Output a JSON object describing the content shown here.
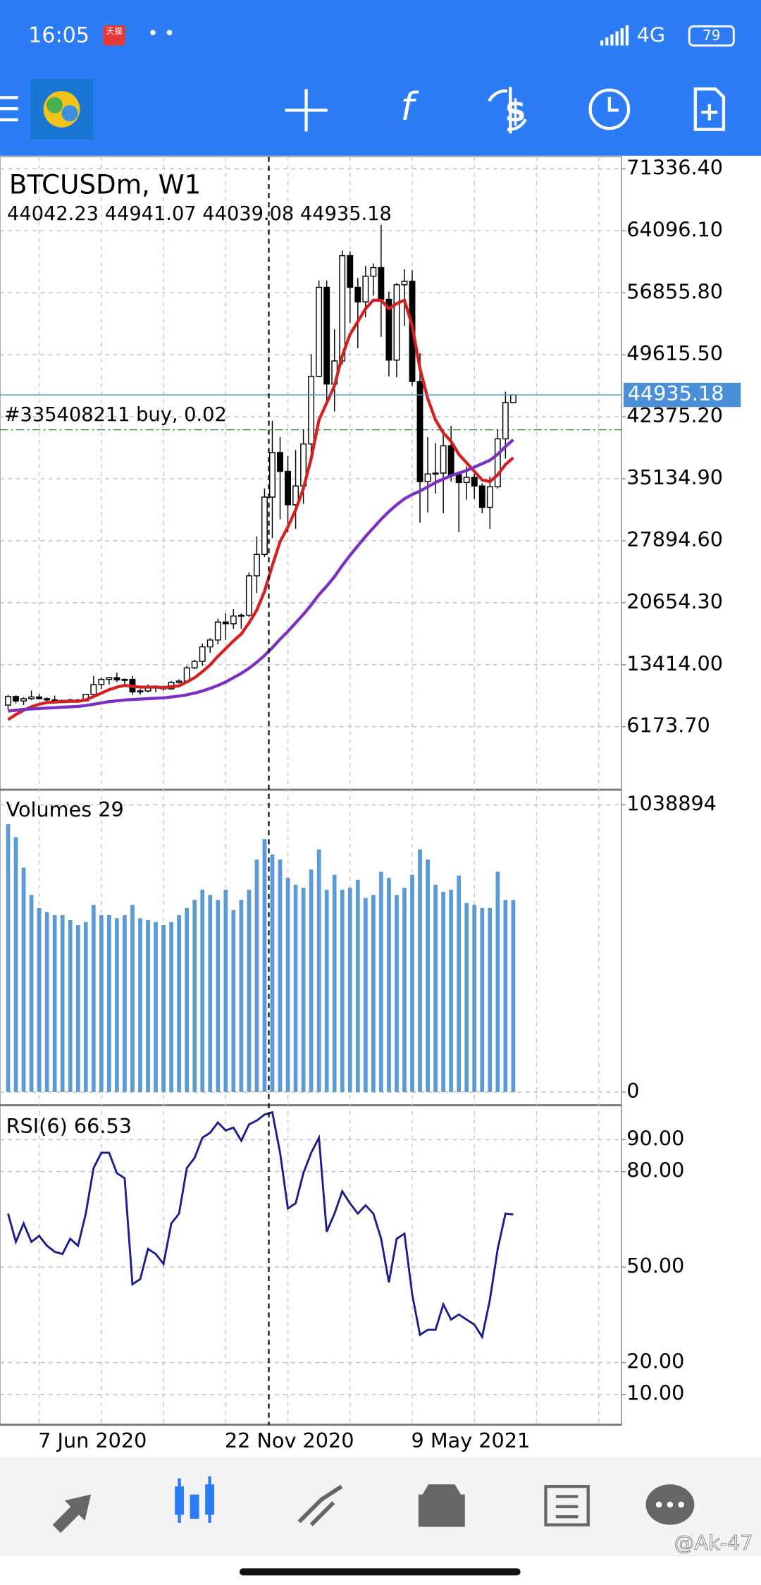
{
  "status_bar": {
    "time": "16:05",
    "badge": "天猫",
    "network": "4G",
    "battery": "79"
  },
  "chart_data": [
    {
      "type": "candlestick",
      "title": "BTCUSDm, W1",
      "categories": [
        null,
        null,
        null,
        null,
        "7 Jun 2020",
        null,
        null,
        null,
        null,
        null,
        null,
        null,
        null,
        null,
        null,
        null,
        null,
        null,
        null,
        null,
        null,
        null,
        null,
        null,
        null,
        null,
        null,
        null,
        "22 Nov 2020",
        null,
        null,
        null,
        null,
        null,
        null,
        null,
        null,
        null,
        null,
        null,
        null,
        null,
        null,
        null,
        null,
        null,
        null,
        null,
        null,
        null,
        null,
        null,
        "9 May 2021",
        null,
        null,
        null,
        null,
        null,
        null,
        null,
        null,
        null,
        null,
        null,
        null,
        null
      ],
      "open": [
        8700,
        9700,
        9180,
        9450,
        9650,
        9450,
        9300,
        9000,
        9250,
        9300,
        9200,
        9950,
        11100,
        11700,
        11900,
        11650,
        11700,
        10250,
        10350,
        10900,
        10750,
        10600,
        11350,
        11500,
        13050,
        13800,
        15500,
        16300,
        18400,
        18200,
        19100,
        19200,
        23800,
        26300,
        33000,
        38200,
        36000,
        32100,
        34300,
        39200,
        47100,
        57500,
        46200,
        48900,
        61200,
        57500,
        55800,
        58800,
        59800,
        56100,
        49000,
        57800,
        58200,
        46500,
        34800,
        35700,
        35800,
        39000,
        35600,
        34700,
        35300,
        34300,
        31800,
        34200,
        39800,
        44042.23
      ],
      "high": [
        9900,
        9850,
        9600,
        10400,
        9980,
        9600,
        9800,
        9300,
        9450,
        9400,
        10000,
        12100,
        11900,
        12000,
        12500,
        11800,
        12100,
        10600,
        11100,
        11000,
        10950,
        11500,
        11700,
        13300,
        14000,
        15900,
        16500,
        18800,
        19400,
        19900,
        19400,
        24200,
        28400,
        34000,
        41900,
        40000,
        37800,
        38500,
        40900,
        49700,
        58300,
        58300,
        52600,
        61800,
        61700,
        58600,
        60000,
        60300,
        64800,
        57000,
        58000,
        59600,
        59500,
        49800,
        40000,
        39300,
        40900,
        41300,
        36000,
        36600,
        35900,
        34600,
        35400,
        40900,
        45300,
        44941.07
      ],
      "low": [
        8100,
        8900,
        8700,
        9300,
        9400,
        9200,
        8900,
        8950,
        9100,
        9050,
        9100,
        9900,
        10600,
        11100,
        11400,
        11100,
        9900,
        9900,
        10200,
        10200,
        10400,
        10500,
        11200,
        11400,
        12900,
        13300,
        14800,
        15800,
        16300,
        17600,
        17600,
        19000,
        21800,
        26000,
        28200,
        30400,
        28900,
        29300,
        32200,
        37400,
        47000,
        43900,
        43000,
        48500,
        53300,
        50400,
        54000,
        56500,
        51700,
        47100,
        47000,
        53000,
        46000,
        30000,
        31200,
        33400,
        31100,
        34800,
        28900,
        32700,
        32800,
        31100,
        29300,
        34000,
        37500,
        44039.08
      ],
      "close": [
        9700,
        9180,
        9450,
        9650,
        9450,
        9300,
        9000,
        9250,
        9300,
        9200,
        9950,
        11100,
        11700,
        11900,
        11650,
        11700,
        10250,
        10350,
        10900,
        10750,
        10600,
        11350,
        11500,
        13050,
        13800,
        15500,
        16300,
        18400,
        18200,
        19100,
        19200,
        23800,
        26300,
        33000,
        38200,
        36000,
        32100,
        34300,
        39200,
        47100,
        57500,
        46200,
        48900,
        61200,
        57500,
        55800,
        58800,
        59800,
        56100,
        49000,
        57800,
        58200,
        46500,
        34800,
        35700,
        35800,
        39000,
        35600,
        34700,
        35300,
        34300,
        31800,
        34200,
        39800,
        44040,
        44935.18
      ],
      "up_color": "#ffffff",
      "down_color": "#000000",
      "moving_averages": [
        {
          "color": "#d42020",
          "values": [
            7000,
            7600,
            8100,
            8500,
            8800,
            9000,
            9050,
            9100,
            9150,
            9150,
            9300,
            9700,
            10100,
            10500,
            10800,
            11000,
            10900,
            10800,
            10800,
            10800,
            10750,
            10850,
            10950,
            11400,
            11900,
            12600,
            13400,
            14400,
            15300,
            16200,
            17000,
            18300,
            19800,
            22000,
            25000,
            27800,
            29500,
            31500,
            34000,
            37500,
            42000,
            44000,
            46000,
            49500,
            52000,
            53500,
            55000,
            56000,
            56000,
            55000,
            55600,
            56000,
            53000,
            48000,
            44500,
            42000,
            40500,
            39500,
            38000,
            37000,
            36000,
            35000,
            34800,
            35600,
            36800,
            37600
          ]
        },
        {
          "color": "#7b30c4",
          "values": [
            8000,
            8100,
            8200,
            8250,
            8300,
            8350,
            8400,
            8450,
            8500,
            8550,
            8650,
            8800,
            8950,
            9100,
            9200,
            9300,
            9350,
            9400,
            9450,
            9500,
            9550,
            9650,
            9750,
            9900,
            10100,
            10350,
            10650,
            11000,
            11400,
            11900,
            12400,
            13000,
            13700,
            14500,
            15400,
            16400,
            17300,
            18300,
            19300,
            20400,
            21600,
            22600,
            23700,
            25000,
            26200,
            27300,
            28400,
            29400,
            30400,
            31300,
            32100,
            32800,
            33300,
            33700,
            34200,
            34700,
            35100,
            35500,
            35800,
            36100,
            36500,
            36900,
            37300,
            38000,
            38900,
            39700
          ]
        }
      ],
      "order": {
        "label": "#335408211 buy, 0.02",
        "price": 40860,
        "color": "#2e7d32"
      },
      "price_line_color": "#4a90d9",
      "ylim": [
        -1067,
        72754
      ],
      "yticks": [
        {
          "value": 71336.4,
          "label": "71336.40"
        },
        {
          "value": 64096.1,
          "label": "64096.10"
        },
        {
          "value": 56855.8,
          "label": "56855.80"
        },
        {
          "value": 49615.5,
          "label": "49615.50"
        },
        {
          "value": 42375.2,
          "label": "42375.20"
        },
        {
          "value": 35134.9,
          "label": "35134.90"
        },
        {
          "value": 27894.6,
          "label": "27894.60"
        },
        {
          "value": 20654.3,
          "label": "20654.30"
        },
        {
          "value": 13414,
          "label": "13414.00"
        },
        {
          "value": 6173.7,
          "label": "6173.70"
        }
      ],
      "grid": true
    },
    {
      "type": "bar",
      "title": "Volumes 29",
      "color": "#5b9bd5",
      "values": [
        969000,
        922000,
        812000,
        713000,
        666000,
        651000,
        640000,
        640000,
        622000,
        604000,
        615000,
        677000,
        640000,
        640000,
        629000,
        640000,
        677000,
        629000,
        622000,
        615000,
        604000,
        615000,
        640000,
        666000,
        695000,
        732000,
        713000,
        695000,
        732000,
        658000,
        695000,
        732000,
        841000,
        915000,
        860000,
        841000,
        775000,
        750000,
        739000,
        805000,
        878000,
        732000,
        786000,
        732000,
        739000,
        768000,
        702000,
        713000,
        797000,
        775000,
        713000,
        739000,
        786000,
        878000,
        841000,
        750000,
        724000,
        732000,
        783000,
        684000,
        677000,
        666000,
        666000,
        797000,
        695000,
        695000
      ],
      "ylim": [
        -43900,
        1086400
      ],
      "yticks": [
        0,
        1038894
      ],
      "grid": true
    },
    {
      "type": "line",
      "title": "RSI(6)",
      "color": "#1c1c8f",
      "values": [
        66.8,
        57.9,
        63.7,
        57.9,
        59.8,
        56.7,
        54.8,
        54.1,
        58.9,
        56.7,
        66.8,
        81.1,
        85.9,
        85.9,
        79.5,
        77.9,
        44.6,
        46.2,
        55.7,
        54.1,
        51.0,
        63.7,
        66.8,
        81.1,
        84.3,
        90.6,
        92.2,
        95.4,
        92.9,
        93.8,
        89.7,
        94.8,
        96.0,
        97.9,
        98.6,
        85.9,
        68.4,
        70.0,
        79.5,
        85.9,
        90.6,
        61.1,
        66.8,
        73.8,
        70.0,
        66.8,
        69.4,
        66.8,
        58.9,
        45.2,
        58.9,
        60.5,
        41.4,
        28.7,
        30.3,
        30.3,
        38.3,
        33.5,
        35.1,
        33.5,
        31.9,
        28.1,
        39.8,
        55.7,
        66.8,
        66.53
      ],
      "ylim": [
        0.8,
        100.2
      ],
      "yticks": [
        {
          "value": 90,
          "label": "90.00"
        },
        {
          "value": 80,
          "label": "80.00"
        },
        {
          "value": 50,
          "label": "50.00"
        },
        {
          "value": 20,
          "label": "20.00"
        },
        {
          "value": 10,
          "label": "10.00"
        }
      ],
      "grid": true
    }
  ],
  "bottom_nav": {
    "watermark": "@Ak-47"
  }
}
